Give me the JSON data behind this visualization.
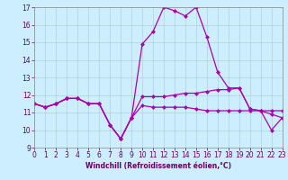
{
  "xlabel": "Windchill (Refroidissement éolien,°C)",
  "bg_color": "#cceeff",
  "grid_color": "#b0d4d4",
  "line_color": "#aa00aa",
  "x": [
    0,
    1,
    2,
    3,
    4,
    5,
    6,
    7,
    8,
    9,
    10,
    11,
    12,
    13,
    14,
    15,
    16,
    17,
    18,
    19,
    20,
    21,
    22,
    23
  ],
  "line1": [
    11.5,
    11.3,
    11.5,
    11.8,
    11.8,
    11.5,
    11.5,
    10.3,
    9.5,
    10.7,
    11.4,
    11.3,
    11.3,
    11.3,
    11.3,
    11.2,
    11.1,
    11.1,
    11.1,
    11.1,
    11.1,
    11.1,
    10.9,
    10.7
  ],
  "line2": [
    11.5,
    11.3,
    11.5,
    11.8,
    11.8,
    11.5,
    11.5,
    10.3,
    9.5,
    10.7,
    14.9,
    15.6,
    17.0,
    16.8,
    16.5,
    17.0,
    15.3,
    13.3,
    12.4,
    12.4,
    11.2,
    11.1,
    10.0,
    10.7
  ],
  "line3": [
    11.5,
    11.3,
    11.5,
    11.8,
    11.8,
    11.5,
    11.5,
    10.3,
    9.5,
    10.7,
    11.9,
    11.9,
    11.9,
    12.0,
    12.1,
    12.1,
    12.2,
    12.3,
    12.3,
    12.4,
    11.2,
    11.1,
    11.1,
    11.1
  ],
  "ylim": [
    9,
    17
  ],
  "xlim": [
    0,
    23
  ],
  "yticks": [
    9,
    10,
    11,
    12,
    13,
    14,
    15,
    16,
    17
  ],
  "xticks": [
    0,
    1,
    2,
    3,
    4,
    5,
    6,
    7,
    8,
    9,
    10,
    11,
    12,
    13,
    14,
    15,
    16,
    17,
    18,
    19,
    20,
    21,
    22,
    23
  ],
  "tick_color": "#660066",
  "label_color": "#660066",
  "tick_fontsize": 5.5,
  "xlabel_fontsize": 5.5
}
